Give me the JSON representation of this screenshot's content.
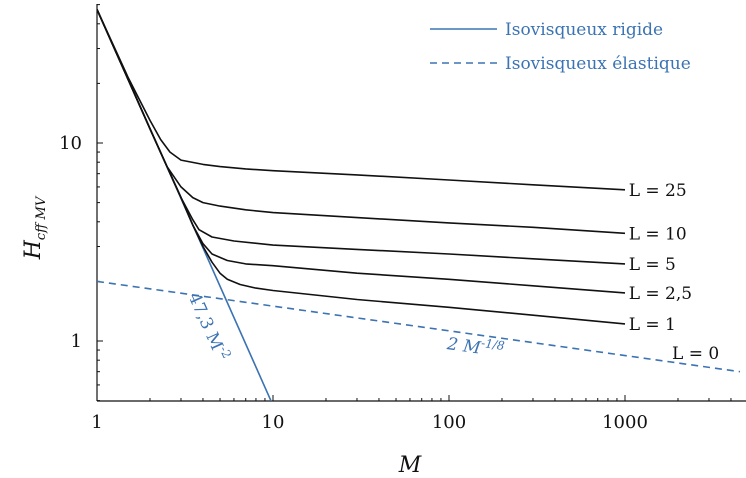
{
  "chart_data": {
    "type": "line",
    "xlabel": "M",
    "ylabel_main": "H",
    "ylabel_sub": "cff MV",
    "xscale": "log",
    "yscale": "log",
    "xlim": [
      1,
      4500
    ],
    "ylim": [
      0.5,
      50
    ],
    "xticks": [
      {
        "value": 1,
        "label": "1"
      },
      {
        "value": 10,
        "label": "10"
      },
      {
        "value": 100,
        "label": "100"
      },
      {
        "value": 1000,
        "label": "1000"
      }
    ],
    "yticks": [
      {
        "value": 1,
        "label": "1"
      },
      {
        "value": 10,
        "label": "10"
      }
    ],
    "colors": {
      "black": "#111111",
      "blue": "#3b73b3"
    },
    "legend": {
      "placement": "top-right",
      "entries": [
        {
          "label": "Isovisqueux rigide",
          "style": "solid"
        },
        {
          "label": "Isovisqueux élastique",
          "style": "dashed"
        }
      ]
    },
    "series": [
      {
        "name": "Isovisqueux rigide",
        "style": "solid",
        "color": "#3b73b3",
        "x": [
          1,
          10
        ],
        "y": [
          47.3,
          0.473
        ]
      },
      {
        "name": "Isovisqueux élastique",
        "style": "dashed",
        "color": "#3b73b3",
        "x": [
          1,
          4500
        ],
        "y": [
          2.0,
          0.7
        ]
      },
      {
        "name": "L = 25",
        "style": "solid",
        "color": "#111111",
        "x": [
          1,
          1.5,
          2,
          2.3,
          2.6,
          3,
          4,
          5,
          7,
          10,
          30,
          100,
          300,
          1000
        ],
        "y": [
          47.3,
          21.5,
          13.0,
          10.4,
          9.0,
          8.2,
          7.8,
          7.6,
          7.4,
          7.25,
          6.9,
          6.5,
          6.15,
          5.8
        ]
      },
      {
        "name": "L = 10",
        "style": "solid",
        "color": "#111111",
        "x": [
          1,
          1.5,
          2,
          2.5,
          3,
          3.5,
          4,
          5,
          7,
          10,
          30,
          100,
          300,
          1000
        ],
        "y": [
          47.3,
          21.0,
          11.8,
          7.6,
          6.0,
          5.3,
          5.0,
          4.8,
          4.6,
          4.45,
          4.2,
          3.95,
          3.75,
          3.5
        ]
      },
      {
        "name": "L = 5",
        "style": "solid",
        "color": "#111111",
        "x": [
          1,
          1.5,
          2,
          2.5,
          3,
          3.5,
          3.8,
          4.5,
          6,
          10,
          30,
          100,
          300,
          1000
        ],
        "y": [
          47.3,
          21.0,
          11.8,
          7.6,
          5.3,
          4.1,
          3.65,
          3.35,
          3.2,
          3.05,
          2.9,
          2.75,
          2.6,
          2.45
        ]
      },
      {
        "name": "L = 2,5",
        "style": "solid",
        "color": "#111111",
        "x": [
          1,
          1.5,
          2,
          2.5,
          3,
          3.5,
          4,
          4.5,
          5.5,
          7,
          10,
          30,
          100,
          300,
          1000
        ],
        "y": [
          47.3,
          21.0,
          11.8,
          7.6,
          5.3,
          3.85,
          3.1,
          2.75,
          2.55,
          2.45,
          2.4,
          2.2,
          2.05,
          1.9,
          1.75
        ]
      },
      {
        "name": "L = 1",
        "style": "solid",
        "color": "#111111",
        "x": [
          1,
          1.5,
          2,
          2.5,
          3,
          3.5,
          4,
          4.5,
          5,
          5.5,
          6.5,
          8,
          10,
          30,
          100,
          300,
          1000
        ],
        "y": [
          47.3,
          21.0,
          11.8,
          7.6,
          5.3,
          3.85,
          3.0,
          2.5,
          2.2,
          2.05,
          1.93,
          1.85,
          1.8,
          1.62,
          1.48,
          1.35,
          1.22
        ]
      }
    ],
    "curve_labels": [
      {
        "text": "L = 25",
        "x": 1050,
        "y": 5.8
      },
      {
        "text": "L = 10",
        "x": 1050,
        "y": 3.5
      },
      {
        "text": "L = 5",
        "x": 1050,
        "y": 2.45
      },
      {
        "text": "L = 2,5",
        "x": 1050,
        "y": 1.75
      },
      {
        "text": "L = 1",
        "x": 1050,
        "y": 1.22
      },
      {
        "text": "L = 0",
        "x": 1850,
        "y": 0.87
      }
    ],
    "annotations": [
      {
        "id": "rigid",
        "main": "47,3 M",
        "sup": "-2",
        "x": 4.0,
        "y": 1.15
      },
      {
        "id": "elastic",
        "main": "2 M",
        "sup": "-1/8",
        "x": 140,
        "y": 0.87
      }
    ]
  }
}
